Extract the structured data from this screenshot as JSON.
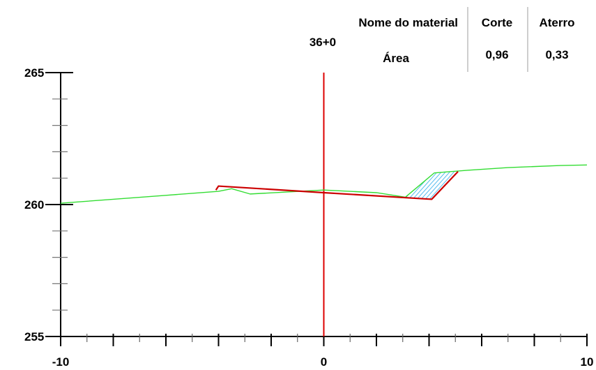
{
  "station": "36+0",
  "table": {
    "header": {
      "material_label": "Nome do material",
      "cut_label": "Corte",
      "fill_label": "Aterro"
    },
    "row": {
      "label": "Área",
      "cut": "0,96",
      "fill": "0,33"
    }
  },
  "chart_data": {
    "type": "line",
    "title": "",
    "xlabel": "",
    "ylabel": "",
    "xlim": [
      -10,
      10
    ],
    "ylim": [
      255,
      265
    ],
    "x_ticks": [
      -10,
      -9,
      -8,
      -7,
      -6,
      -5,
      -4,
      -3,
      -2,
      -1,
      0,
      1,
      2,
      3,
      4,
      5,
      6,
      7,
      8,
      9,
      10
    ],
    "x_tick_labels": [
      {
        "value": -10,
        "label": "-10"
      },
      {
        "value": 0,
        "label": "0"
      },
      {
        "value": 10,
        "label": "10"
      }
    ],
    "y_ticks": [
      255,
      256,
      257,
      258,
      259,
      260,
      261,
      262,
      263,
      264,
      265
    ],
    "y_tick_labels": [
      {
        "value": 265,
        "label": "265"
      },
      {
        "value": 260,
        "label": "260"
      },
      {
        "value": 255,
        "label": "255"
      }
    ],
    "centerline_x": 0,
    "series": [
      {
        "role": "terrain",
        "color": "#33dd33",
        "points": [
          [
            -10,
            260.05
          ],
          [
            -8,
            260.2
          ],
          [
            -6,
            260.35
          ],
          [
            -4,
            260.5
          ],
          [
            -3.5,
            260.6
          ],
          [
            -2.8,
            260.4
          ],
          [
            0,
            260.55
          ],
          [
            2,
            260.45
          ],
          [
            3.1,
            260.28
          ],
          [
            4.2,
            261.2
          ],
          [
            5.5,
            261.3
          ],
          [
            7,
            261.4
          ],
          [
            9,
            261.48
          ],
          [
            10,
            261.5
          ]
        ]
      },
      {
        "role": "design",
        "color": "#cc0000",
        "points": [
          [
            -4.1,
            260.55
          ],
          [
            -4.0,
            260.7
          ],
          [
            0,
            260.45
          ],
          [
            4.1,
            260.2
          ],
          [
            5.1,
            261.25
          ]
        ]
      }
    ],
    "hatch": {
      "color": "#55bbee",
      "region": [
        [
          3.1,
          260.28
        ],
        [
          4.2,
          261.2
        ],
        [
          5.1,
          261.25
        ],
        [
          4.1,
          260.2
        ]
      ]
    }
  }
}
